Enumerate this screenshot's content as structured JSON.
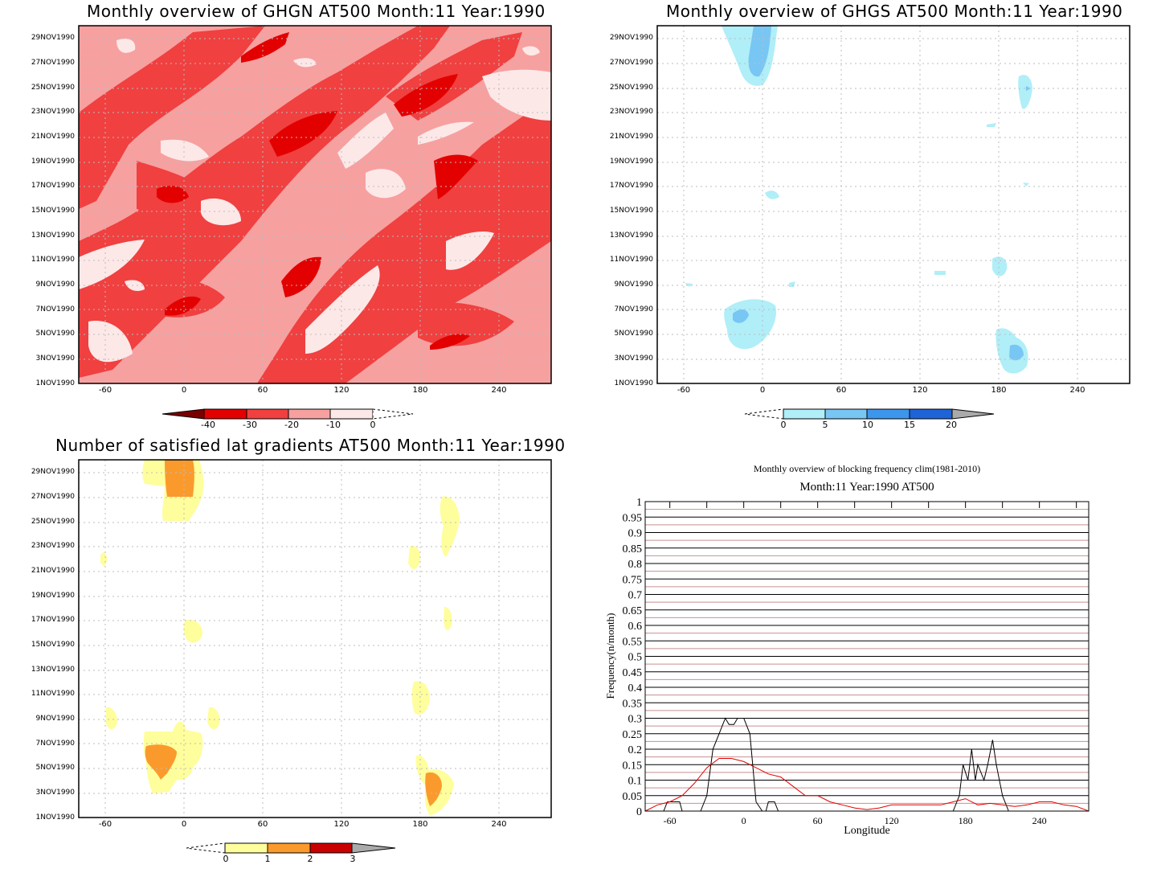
{
  "panels": {
    "ghgn": {
      "title": "Monthly overview of GHGN AT500 Month:11 Year:1990",
      "colorbar": {
        "ticks": [
          "-40",
          "-30",
          "-20",
          "-10",
          "0"
        ],
        "colors": [
          "#7a0000",
          "#e30000",
          "#f04040",
          "#f7a0a0",
          "#fde8e8"
        ]
      }
    },
    "ghgs": {
      "title": "Monthly overview of GHGS AT500 Month:11 Year:1990",
      "colorbar": {
        "ticks": [
          "0",
          "5",
          "10",
          "15",
          "20"
        ],
        "colors": [
          "#b0eef8",
          "#78c6f4",
          "#3c96ec",
          "#1e64d6",
          "#aaaaaa"
        ]
      }
    },
    "lat": {
      "title": "Number of satisfied lat gradients AT500 Month:11 Year:1990",
      "colorbar": {
        "ticks": [
          "0",
          "1",
          "2",
          "3"
        ],
        "colors": [
          "#fefe9c",
          "#fb9a2c",
          "#c80000",
          "#aaaaaa"
        ]
      }
    },
    "freq": {
      "title": "Monthly overview of blocking frequency clim(1981-2010)",
      "subtitle": "Month:11 Year:1990  AT500"
    }
  },
  "common_axes": {
    "x_ticks": [
      "-60",
      "0",
      "60",
      "120",
      "180",
      "240"
    ],
    "y_ticks": [
      "1NOV1990",
      "3NOV1990",
      "5NOV1990",
      "7NOV1990",
      "9NOV1990",
      "11NOV1990",
      "13NOV1990",
      "15NOV1990",
      "17NOV1990",
      "19NOV1990",
      "21NOV1990",
      "23NOV1990",
      "25NOV1990",
      "27NOV1990",
      "29NOV1990"
    ]
  },
  "chart_data": [
    {
      "type": "heatmap",
      "title": "Monthly overview of GHGN AT500 Month:11 Year:1990",
      "x_range": [
        -80,
        280
      ],
      "y_range": [
        "1NOV1990",
        "30NOV1990"
      ],
      "levels": [
        -40,
        -30,
        -20,
        -10,
        0
      ]
    },
    {
      "type": "heatmap",
      "title": "Monthly overview of GHGS AT500 Month:11 Year:1990",
      "x_range": [
        -80,
        280
      ],
      "y_range": [
        "1NOV1990",
        "30NOV1990"
      ],
      "levels": [
        0,
        5,
        10,
        15,
        20
      ]
    },
    {
      "type": "heatmap",
      "title": "Number of satisfied lat gradients AT500 Month:11 Year:1990",
      "x_range": [
        -80,
        280
      ],
      "y_range": [
        "1NOV1990",
        "30NOV1990"
      ],
      "levels": [
        0,
        1,
        2,
        3
      ]
    },
    {
      "type": "line",
      "title": "Monthly overview of blocking frequency clim(1981-2010)",
      "subtitle": "Month:11 Year:1990  AT500",
      "xlabel": "Longitude",
      "ylabel": "Frequency(n/month)",
      "xlim": [
        -80,
        280
      ],
      "ylim": [
        0,
        1
      ],
      "x_ticks": [
        "-60",
        "0",
        "60",
        "120",
        "180",
        "240"
      ],
      "y_ticks": [
        "0",
        "0.05",
        "0.1",
        "0.15",
        "0.2",
        "0.25",
        "0.3",
        "0.35",
        "0.4",
        "0.45",
        "0.5",
        "0.55",
        "0.6",
        "0.65",
        "0.7",
        "0.75",
        "0.8",
        "0.85",
        "0.9",
        "0.95",
        "1"
      ],
      "series": [
        {
          "color": "#000000",
          "x": [
            -80,
            -65,
            -62,
            -52,
            -50,
            -40,
            -35,
            -30,
            -25,
            -20,
            -15,
            -12,
            -8,
            -5,
            0,
            5,
            10,
            15,
            18,
            20,
            22,
            25,
            28,
            35,
            60,
            120,
            170,
            175,
            178,
            182,
            185,
            188,
            190,
            195,
            198,
            202,
            205,
            210,
            215,
            220,
            280
          ],
          "values": [
            0,
            0,
            0.03,
            0.03,
            0,
            0,
            0,
            0.05,
            0.2,
            0.25,
            0.3,
            0.28,
            0.28,
            0.3,
            0.3,
            0.25,
            0.03,
            0,
            0,
            0.03,
            0.03,
            0.03,
            0,
            0,
            0,
            0,
            0,
            0.05,
            0.15,
            0.1,
            0.2,
            0.1,
            0.15,
            0.1,
            0.15,
            0.23,
            0.15,
            0.05,
            0,
            0,
            0
          ]
        },
        {
          "color": "#e00000",
          "x": [
            -80,
            -70,
            -60,
            -50,
            -40,
            -30,
            -20,
            -10,
            0,
            10,
            20,
            30,
            40,
            50,
            60,
            70,
            80,
            90,
            100,
            110,
            120,
            140,
            160,
            170,
            180,
            190,
            200,
            210,
            220,
            230,
            240,
            250,
            260,
            270,
            280
          ],
          "values": [
            0,
            0.02,
            0.03,
            0.05,
            0.09,
            0.14,
            0.17,
            0.17,
            0.16,
            0.14,
            0.12,
            0.11,
            0.08,
            0.05,
            0.05,
            0.03,
            0.02,
            0.01,
            0.005,
            0.01,
            0.02,
            0.02,
            0.02,
            0.03,
            0.04,
            0.02,
            0.025,
            0.02,
            0.015,
            0.02,
            0.03,
            0.03,
            0.02,
            0.015,
            0
          ]
        }
      ]
    }
  ]
}
